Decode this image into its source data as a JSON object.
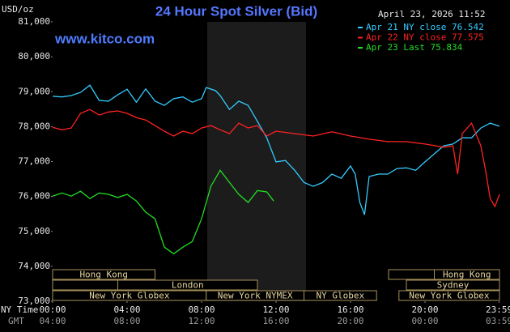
{
  "chart_data": {
    "type": "line",
    "title": "24 Hour Spot Silver (Bid)",
    "timestamp": "April 23, 2026 11:52",
    "source": "www.kitco.com",
    "y_label": "USD/oz",
    "ny_label": "NY Time",
    "gmt_label": "GMT",
    "xlim": [
      0,
      24
    ],
    "ylim": [
      73000,
      81000
    ],
    "yticks": [
      {
        "value": 73000,
        "label": "73,000"
      },
      {
        "value": 74000,
        "label": "74,000"
      },
      {
        "value": 75000,
        "label": "75,000"
      },
      {
        "value": 76000,
        "label": "76,000"
      },
      {
        "value": 77000,
        "label": "77,000"
      },
      {
        "value": 78000,
        "label": "78,000"
      },
      {
        "value": 79000,
        "label": "79,000"
      },
      {
        "value": 80000,
        "label": "80,000"
      },
      {
        "value": 81000,
        "label": "81,000"
      }
    ],
    "xticks": [
      {
        "value": 0,
        "label": "00:00"
      },
      {
        "value": 4,
        "label": "04:00"
      },
      {
        "value": 8,
        "label": "08:00"
      },
      {
        "value": 12,
        "label": "12:00"
      },
      {
        "value": 16,
        "label": "16:00"
      },
      {
        "value": 20,
        "label": "20:00"
      },
      {
        "value": 23.98,
        "label": "23:59"
      }
    ],
    "gmt_ticks": [
      "04:00",
      "08:00",
      "12:00",
      "16:00",
      "20:00",
      "00:00",
      "03:59"
    ],
    "sessions": [
      {
        "label": "Hong Kong",
        "start": 0,
        "end": 5.5,
        "row": 0
      },
      {
        "label": "Hong Kong",
        "start": 20.5,
        "end": 24,
        "row": 0
      },
      {
        "label": "London",
        "start": 3.5,
        "end": 11,
        "row": 1
      },
      {
        "label": "Sydney",
        "start": 19,
        "end": 24,
        "row": 1
      },
      {
        "label": "New York Globex",
        "start": 0,
        "end": 8.25,
        "row": 2
      },
      {
        "label": "New York NYMEX",
        "start": 8.25,
        "end": 13.5,
        "row": 2
      },
      {
        "label": "NY Globex",
        "start": 13.5,
        "end": 17.4,
        "row": 2
      },
      {
        "label": "New York Globex",
        "start": 18.6,
        "end": 24,
        "row": 2
      }
    ],
    "series": [
      {
        "name": "Apr 21 NY close 76.542",
        "color": "#33ccff",
        "x": [
          0,
          0.5,
          1,
          1.5,
          2,
          2.5,
          3,
          3.5,
          4,
          4.5,
          5,
          5.5,
          6,
          6.5,
          7,
          7.5,
          8,
          8.25,
          8.75,
          9,
          9.5,
          10,
          10.5,
          11,
          11.5,
          12,
          12.5,
          13,
          13.5,
          14,
          14.5,
          15,
          15.5,
          16,
          16.25,
          16.5,
          16.75,
          17,
          17.5,
          18,
          18.5,
          19,
          19.5,
          20,
          20.5,
          21,
          21.5,
          22,
          22.5,
          23,
          23.5,
          24
        ],
        "values": [
          78870,
          78850,
          78890,
          78980,
          79190,
          78750,
          78730,
          78910,
          79070,
          78700,
          79080,
          78730,
          78610,
          78800,
          78850,
          78700,
          78800,
          79120,
          79030,
          78890,
          78490,
          78730,
          78610,
          78150,
          77680,
          76990,
          77030,
          76750,
          76400,
          76290,
          76400,
          76640,
          76520,
          76870,
          76640,
          75830,
          75480,
          76570,
          76640,
          76640,
          76800,
          76820,
          76750,
          76990,
          77220,
          77450,
          77500,
          77680,
          77680,
          77960,
          78100,
          78010
        ]
      },
      {
        "name": "Apr 22 NY close 77.575",
        "color": "#ff2222",
        "x": [
          0,
          0.5,
          1,
          1.5,
          2,
          2.5,
          3,
          3.5,
          4,
          4.5,
          5,
          5.5,
          6,
          6.5,
          7,
          7.5,
          8,
          8.5,
          9,
          9.5,
          10,
          10.5,
          11,
          11.5,
          12,
          13,
          14,
          15,
          16,
          17,
          18,
          19,
          20,
          21,
          21.5,
          21.75,
          22,
          22.5,
          23,
          23.25,
          23.5,
          23.75,
          24
        ],
        "values": [
          77980,
          77910,
          77960,
          78380,
          78490,
          78330,
          78420,
          78450,
          78380,
          78260,
          78190,
          78030,
          77870,
          77730,
          77870,
          77800,
          77960,
          78030,
          77910,
          77800,
          78100,
          77960,
          78030,
          77730,
          77870,
          77800,
          77730,
          77850,
          77730,
          77640,
          77570,
          77570,
          77500,
          77410,
          77450,
          76640,
          77800,
          78100,
          77450,
          76750,
          75940,
          75710,
          76060
        ]
      },
      {
        "name": "Apr 23 Last 75.834",
        "color": "#22dd22",
        "x": [
          0,
          0.5,
          1,
          1.5,
          2,
          2.5,
          3,
          3.5,
          4,
          4.5,
          5,
          5.5,
          6,
          6.5,
          7,
          7.5,
          8,
          8.5,
          9,
          9.5,
          10,
          10.5,
          11,
          11.5,
          11.87
        ],
        "values": [
          76010,
          76100,
          76010,
          76150,
          75940,
          76100,
          76060,
          75970,
          76060,
          75870,
          75550,
          75360,
          74550,
          74360,
          74550,
          74710,
          75360,
          76290,
          76750,
          76400,
          76060,
          75830,
          76170,
          76130,
          75870
        ]
      }
    ]
  }
}
